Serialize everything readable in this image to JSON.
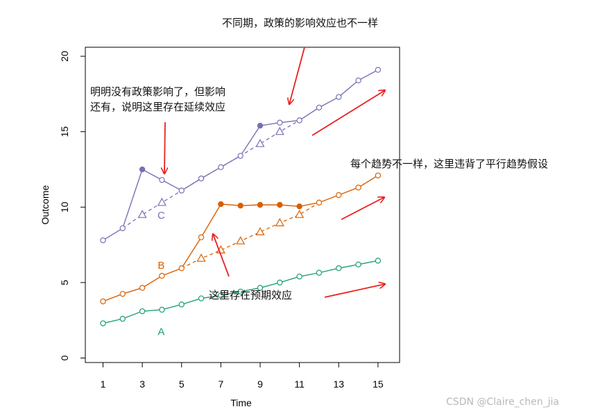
{
  "chart_data": {
    "type": "line",
    "xlabel": "Time",
    "ylabel": "Outcome",
    "xlim": [
      0.1,
      16.1
    ],
    "ylim": [
      -0.3,
      20.6
    ],
    "xticks": [
      1,
      3,
      5,
      7,
      9,
      11,
      13,
      15
    ],
    "yticks": [
      0,
      5,
      10,
      15,
      20
    ],
    "grid": false,
    "series": [
      {
        "name": "A",
        "color": "#1b9e77",
        "x": [
          1,
          2,
          3,
          4,
          5,
          6,
          7,
          8,
          9,
          10,
          11,
          12,
          13,
          14,
          15
        ],
        "y": [
          2.3,
          2.6,
          3.1,
          3.2,
          3.55,
          3.95,
          4.15,
          4.4,
          4.65,
          5.0,
          5.4,
          5.65,
          5.95,
          6.2,
          6.45
        ],
        "filled_points": []
      },
      {
        "name": "B",
        "color": "#d95f02",
        "x": [
          1,
          2,
          3,
          4,
          5,
          6,
          7,
          8,
          9,
          10,
          11,
          12,
          13,
          14,
          15
        ],
        "y": [
          3.75,
          4.25,
          4.65,
          5.45,
          5.95,
          8.0,
          10.2,
          10.1,
          10.15,
          10.15,
          10.05,
          10.3,
          10.8,
          11.3,
          12.1
        ],
        "filled_points": [
          7,
          8,
          9,
          10,
          11
        ],
        "counterfactual": {
          "x": [
            5,
            6,
            7,
            8,
            9,
            10,
            11,
            12
          ],
          "y": [
            5.95,
            6.6,
            7.15,
            7.75,
            8.35,
            8.95,
            9.5,
            10.3
          ],
          "markers_x": [
            6,
            7,
            8,
            9,
            10,
            11
          ]
        }
      },
      {
        "name": "C",
        "color": "#7570b3",
        "x": [
          1,
          2,
          3,
          4,
          5,
          6,
          7,
          8,
          9,
          10,
          11,
          12,
          13,
          14,
          15
        ],
        "y": [
          7.8,
          8.6,
          12.5,
          11.8,
          11.1,
          11.9,
          12.65,
          13.4,
          15.4,
          15.6,
          15.75,
          16.6,
          17.3,
          18.4,
          19.1
        ],
        "filled_points": [
          3,
          9
        ],
        "counterfactual": {
          "x": [
            2,
            3,
            4,
            5,
            6,
            7,
            8,
            9,
            10,
            11
          ],
          "y": [
            8.6,
            9.5,
            10.3,
            11.1,
            11.9,
            12.65,
            13.4,
            14.2,
            15.0,
            15.75
          ],
          "markers_x": [
            3,
            4,
            9,
            10
          ]
        }
      }
    ],
    "series_labels": [
      {
        "text": "A",
        "x": 4,
        "y": 1.8,
        "color": "#1b9e77"
      },
      {
        "text": "B",
        "x": 4,
        "y": 6.2,
        "color": "#d95f02"
      },
      {
        "text": "C",
        "x": 4,
        "y": 9.5,
        "color": "#7570b3"
      }
    ]
  },
  "annotations": {
    "top_note": "不同期，政策的影响效应也不一样",
    "carryover_line1": "明明没有政策影响了，但影响",
    "carryover_line2": "还有，说明这里存在延续效应",
    "trend_note": "每个趋势不一样，这里违背了平行趋势假设",
    "anticipation_note": "这里存在预期效应",
    "arrow_color": "#e8201f"
  },
  "watermark": "CSDN @Claire_chen_jia"
}
